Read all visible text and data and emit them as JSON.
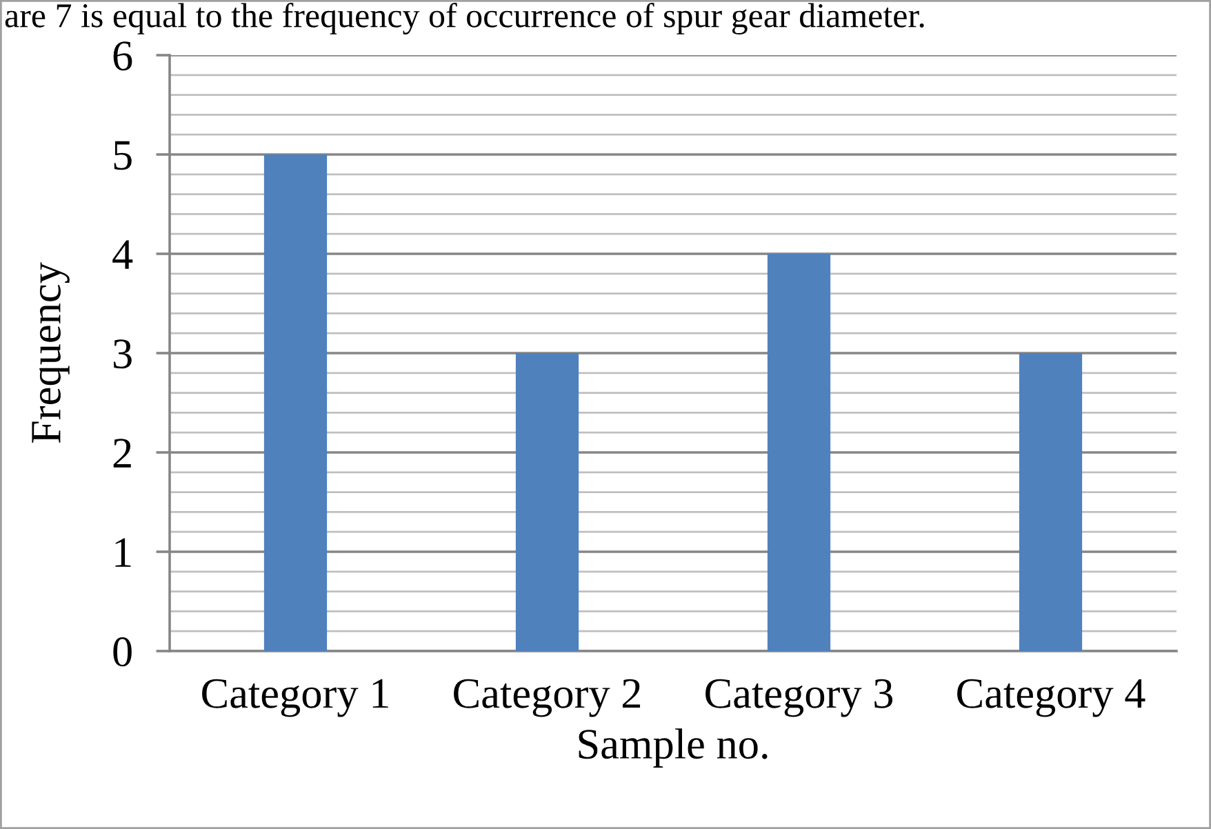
{
  "chart_data": {
    "type": "bar",
    "categories": [
      "Category 1",
      "Category 2",
      "Category 3",
      "Category 4"
    ],
    "values": [
      5,
      3,
      4,
      3
    ],
    "color": "#4f81bd",
    "xlabel": "Sample no.",
    "ylabel": "Frequency",
    "ylim": [
      0,
      6
    ],
    "yticks": [
      0,
      {
        "value": 0.2,
        "label": null
      },
      {
        "value": 0.4,
        "label": null
      },
      {
        "value": 0.6,
        "label": null
      },
      {
        "value": 0.8,
        "label": null
      },
      1,
      {
        "value": 1.2,
        "label": null
      },
      {
        "value": 1.4,
        "label": null
      },
      {
        "value": 1.6,
        "label": null
      },
      {
        "value": 1.8,
        "label": null
      },
      2,
      {
        "value": 2.2,
        "label": null
      },
      {
        "value": 2.4,
        "label": null
      },
      {
        "value": 2.6,
        "label": null
      },
      {
        "value": 2.8,
        "label": null
      },
      3,
      {
        "value": 3.2,
        "label": null
      },
      {
        "value": 3.4,
        "label": null
      },
      {
        "value": 3.6,
        "label": null
      },
      {
        "value": 3.8,
        "label": null
      },
      4,
      {
        "value": 4.2,
        "label": null
      },
      {
        "value": 4.4,
        "label": null
      },
      {
        "value": 4.6,
        "label": null
      },
      {
        "value": 4.8,
        "label": null
      },
      5,
      {
        "value": 5.2,
        "label": null
      },
      {
        "value": 5.4,
        "label": null
      },
      {
        "value": 5.6,
        "label": null
      },
      {
        "value": 5.8,
        "label": null
      },
      6
    ],
    "grid": "y",
    "annotations": [
      "are 7 is equal to the frequency of occurrence of spur gear diameter."
    ]
  }
}
